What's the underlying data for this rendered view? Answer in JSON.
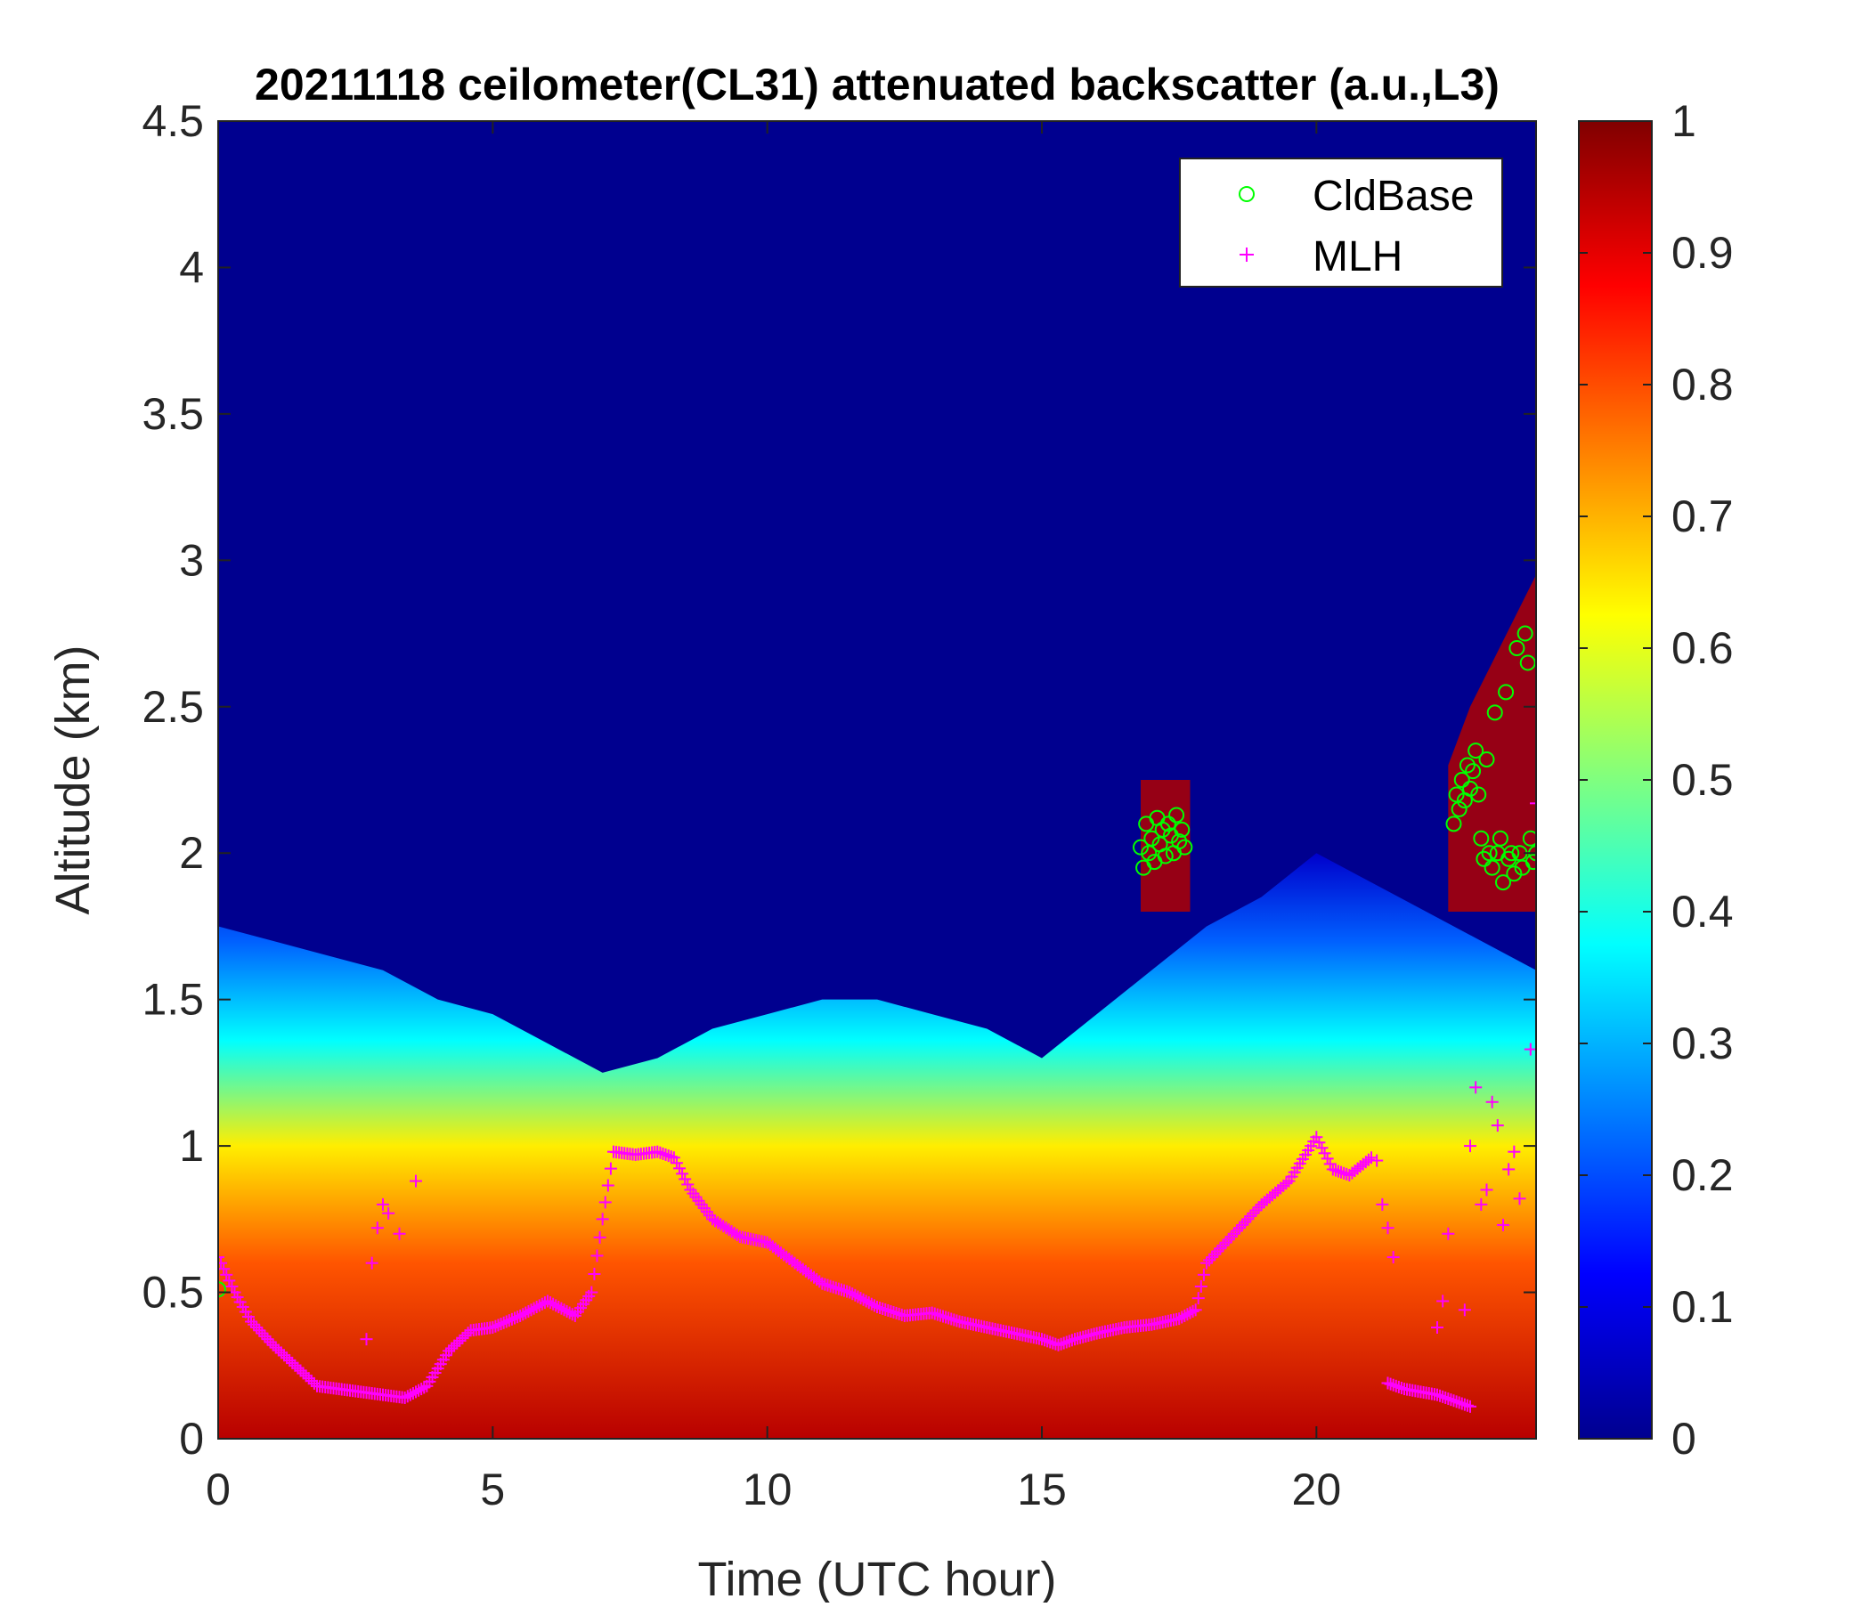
{
  "chart_data": {
    "type": "heatmap",
    "title": "20211118 ceilometer(CL31) attenuated backscatter (a.u.,L3)",
    "xlabel": "Time (UTC hour)",
    "ylabel": "Altitude (km)",
    "xlim": [
      0,
      24
    ],
    "ylim": [
      0,
      4.5
    ],
    "xticks": [
      0,
      5,
      10,
      15,
      20
    ],
    "xtick_labels": [
      "0",
      "5",
      "10",
      "15",
      "20"
    ],
    "yticks": [
      0,
      0.5,
      1,
      1.5,
      2,
      2.5,
      3,
      3.5,
      4,
      4.5
    ],
    "ytick_labels": [
      "0",
      "0.5",
      "1",
      "1.5",
      "2",
      "2.5",
      "3",
      "3.5",
      "4",
      "4.5"
    ],
    "colorbar": {
      "colormap": "jet",
      "clim": [
        0,
        1
      ],
      "ticks": [
        0,
        0.1,
        0.2,
        0.3,
        0.4,
        0.5,
        0.6,
        0.7,
        0.8,
        0.9,
        1
      ],
      "tick_labels": [
        "0",
        "0.1",
        "0.2",
        "0.3",
        "0.4",
        "0.5",
        "0.6",
        "0.7",
        "0.8",
        "0.9",
        "1"
      ]
    },
    "legend": {
      "placement": "top-right",
      "entries": [
        {
          "label": "CldBase",
          "marker": "circle",
          "color": "#00ff00"
        },
        {
          "label": "MLH",
          "marker": "plus",
          "color": "#ff00ff"
        }
      ]
    },
    "layer_top_km": {
      "x": [
        0,
        1,
        2,
        3,
        4,
        5,
        6,
        7,
        8,
        9,
        10,
        11,
        12,
        13,
        14,
        15,
        16,
        17,
        18,
        19,
        20,
        21,
        22,
        23,
        24
      ],
      "y": [
        1.75,
        1.7,
        1.65,
        1.6,
        1.5,
        1.45,
        1.35,
        1.25,
        1.3,
        1.4,
        1.45,
        1.5,
        1.5,
        1.45,
        1.4,
        1.3,
        1.45,
        1.6,
        1.75,
        1.85,
        2.0,
        1.9,
        1.8,
        1.7,
        1.6
      ]
    },
    "mlh": {
      "x": [
        0,
        0.3,
        0.6,
        1.0,
        1.4,
        1.8,
        2.2,
        2.6,
        3.0,
        3.4,
        3.8,
        4.2,
        4.6,
        5.0,
        5.5,
        6.0,
        6.5,
        6.8,
        7.0,
        7.2,
        7.6,
        8.0,
        8.3,
        8.6,
        9.0,
        9.5,
        10.0,
        10.5,
        11.0,
        11.5,
        12.0,
        12.5,
        13.0,
        13.5,
        14.0,
        14.5,
        15.0,
        15.3,
        15.6,
        16.0,
        16.5,
        17.0,
        17.5,
        17.8,
        18.0,
        18.5,
        19.0,
        19.5,
        20.0,
        20.3,
        20.6,
        21.0
      ],
      "y": [
        0.62,
        0.5,
        0.4,
        0.32,
        0.25,
        0.18,
        0.17,
        0.16,
        0.15,
        0.14,
        0.18,
        0.3,
        0.37,
        0.38,
        0.42,
        0.47,
        0.42,
        0.5,
        0.75,
        0.98,
        0.97,
        0.98,
        0.96,
        0.85,
        0.75,
        0.69,
        0.67,
        0.6,
        0.53,
        0.5,
        0.45,
        0.42,
        0.43,
        0.4,
        0.38,
        0.36,
        0.34,
        0.32,
        0.34,
        0.36,
        0.38,
        0.39,
        0.41,
        0.44,
        0.6,
        0.7,
        0.8,
        0.88,
        1.03,
        0.92,
        0.9,
        0.96
      ]
    },
    "mlh_scatter": {
      "x": [
        2.7,
        2.8,
        2.9,
        3.0,
        3.1,
        3.3,
        3.6,
        21.1,
        21.2,
        21.3,
        21.4,
        22.2,
        22.3,
        22.4,
        22.7,
        22.8,
        22.9,
        23.0,
        23.1,
        23.2,
        23.3,
        23.4,
        23.5,
        23.6,
        23.7,
        23.9,
        24.0
      ],
      "y": [
        0.34,
        0.6,
        0.72,
        0.8,
        0.77,
        0.7,
        0.88,
        0.95,
        0.8,
        0.72,
        0.62,
        0.38,
        0.47,
        0.7,
        0.44,
        1.0,
        1.2,
        0.8,
        0.85,
        1.15,
        1.07,
        0.73,
        0.92,
        0.98,
        0.82,
        1.33,
        2.17
      ]
    },
    "mlh_low_segment": {
      "x": [
        21.3,
        21.6,
        21.9,
        22.2,
        22.5,
        22.8
      ],
      "y": [
        0.19,
        0.17,
        0.16,
        0.15,
        0.13,
        0.11
      ]
    },
    "cld_base": {
      "x": [
        0.0,
        16.8,
        16.85,
        16.9,
        16.95,
        17.0,
        17.05,
        17.1,
        17.15,
        17.2,
        17.25,
        17.3,
        17.35,
        17.4,
        17.45,
        17.5,
        17.55,
        17.6,
        22.5,
        22.55,
        22.6,
        22.65,
        22.7,
        22.75,
        22.8,
        22.85,
        22.9,
        22.95,
        23.0,
        23.05,
        23.1,
        23.15,
        23.2,
        23.25,
        23.3,
        23.35,
        23.4,
        23.45,
        23.5,
        23.55,
        23.6,
        23.65,
        23.7,
        23.75,
        23.8,
        23.85,
        23.9,
        23.95,
        24.0
      ],
      "y": [
        0.51,
        2.02,
        1.95,
        2.1,
        2.0,
        2.05,
        1.97,
        2.12,
        2.03,
        2.08,
        1.99,
        2.1,
        2.06,
        2.0,
        2.13,
        2.04,
        2.08,
        2.02,
        2.1,
        2.2,
        2.15,
        2.25,
        2.18,
        2.3,
        2.22,
        2.28,
        2.35,
        2.2,
        2.05,
        1.98,
        2.32,
        2.0,
        1.95,
        2.48,
        2.0,
        2.05,
        1.9,
        2.55,
        1.98,
        2.0,
        1.93,
        2.7,
        2.0,
        1.95,
        2.75,
        2.65,
        2.05,
        1.97,
        2.0
      ]
    }
  }
}
